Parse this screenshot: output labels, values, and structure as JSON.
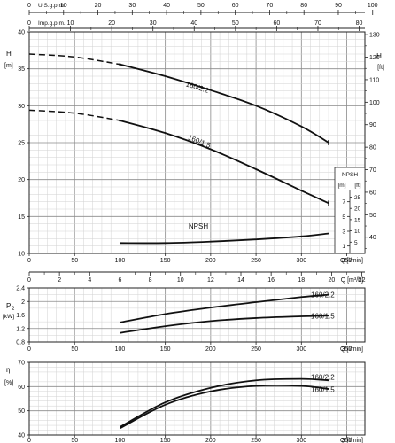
{
  "chart_data": [
    {
      "type": "line",
      "name": "head",
      "top_axes": [
        {
          "label": "U.S.g.p.m.",
          "ticks": [
            0,
            10,
            20,
            30,
            40,
            50,
            60,
            70,
            80,
            90,
            100
          ],
          "range": [
            0,
            100
          ]
        },
        {
          "label": "Imp.g.p.m.",
          "ticks": [
            0,
            10,
            20,
            30,
            40,
            50,
            60,
            70,
            80
          ],
          "range": [
            0,
            80
          ]
        }
      ],
      "xlabel": "Q [l/min]",
      "xlim": [
        0,
        370
      ],
      "x_ticks": [
        0,
        50,
        100,
        150,
        200,
        250,
        300,
        350
      ],
      "ylabel": "H [m]",
      "ylim": [
        10,
        40
      ],
      "y_ticks": [
        10,
        15,
        20,
        25,
        30,
        35,
        40
      ],
      "ylabel_right": "H [ft]",
      "y_right_ticks": [
        40,
        50,
        60,
        70,
        80,
        90,
        100,
        110,
        120,
        130
      ],
      "series": [
        {
          "name": "160/2.2",
          "dashed_x": [
            0,
            50,
            100
          ],
          "dashed_y": [
            37.0,
            36.6,
            35.6
          ],
          "x": [
            100,
            150,
            200,
            250,
            300,
            330
          ],
          "y": [
            35.6,
            34.0,
            32.1,
            30.0,
            27.2,
            25.0
          ]
        },
        {
          "name": "160/1.5",
          "dashed_x": [
            0,
            50,
            100
          ],
          "dashed_y": [
            29.4,
            29.0,
            28.0
          ],
          "x": [
            100,
            150,
            200,
            250,
            300,
            330
          ],
          "y": [
            28.0,
            26.3,
            24.1,
            21.4,
            18.5,
            16.8
          ]
        },
        {
          "name": "NPSH",
          "x": [
            100,
            150,
            200,
            250,
            300,
            330
          ],
          "y": [
            11.4,
            11.4,
            11.6,
            11.9,
            12.3,
            12.7
          ]
        }
      ],
      "inset_axis": {
        "labels": [
          "NPSH",
          "[m]",
          "[ft]"
        ],
        "m_ticks": [
          1,
          3,
          5,
          7
        ],
        "ft_ticks": [
          5,
          10,
          15,
          20,
          25
        ]
      }
    },
    {
      "type": "line",
      "name": "power",
      "xlabel": "Q [l/min]",
      "xlim": [
        0,
        370
      ],
      "x_ticks": [
        0,
        50,
        100,
        150,
        200,
        250,
        300,
        350
      ],
      "ylabel": "P2 [kW]",
      "ylim": [
        0.8,
        2.4
      ],
      "y_ticks": [
        0.8,
        1.2,
        1.6,
        2.0,
        2.4
      ],
      "series": [
        {
          "name": "160/2.2",
          "x": [
            100,
            150,
            200,
            250,
            300,
            330
          ],
          "y": [
            1.38,
            1.63,
            1.82,
            1.98,
            2.13,
            2.2
          ]
        },
        {
          "name": "160/1.5",
          "x": [
            100,
            150,
            200,
            250,
            300,
            330
          ],
          "y": [
            1.07,
            1.27,
            1.42,
            1.51,
            1.56,
            1.58
          ]
        }
      ]
    },
    {
      "type": "line",
      "name": "efficiency",
      "xlabel": "Q [l/min]",
      "xlim": [
        0,
        370
      ],
      "x_ticks": [
        0,
        50,
        100,
        150,
        200,
        250,
        300,
        350
      ],
      "ylabel": "η [%]",
      "ylim": [
        40,
        70
      ],
      "y_ticks": [
        40,
        50,
        60,
        70
      ],
      "series": [
        {
          "name": "160/2.2",
          "x": [
            100,
            150,
            200,
            250,
            300,
            330
          ],
          "y": [
            43.3,
            53.5,
            59.5,
            62.6,
            63.2,
            62.6
          ]
        },
        {
          "name": "160/1.5",
          "x": [
            100,
            150,
            200,
            250,
            300,
            330
          ],
          "y": [
            42.8,
            52.5,
            58.0,
            60.3,
            60.3,
            59.0
          ]
        }
      ]
    }
  ],
  "flow_m3h_axis": {
    "label": "Q [m³/h]",
    "ticks": [
      0,
      2,
      4,
      6,
      8,
      10,
      12,
      14,
      16,
      18,
      20,
      22
    ]
  }
}
